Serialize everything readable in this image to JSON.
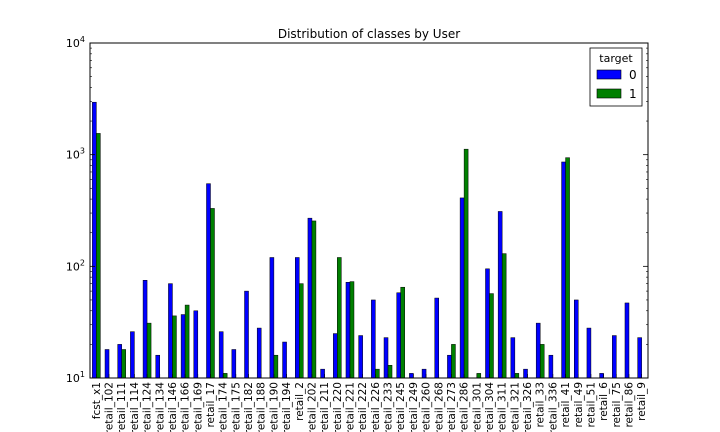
{
  "chart_data": {
    "type": "bar",
    "title": "Distribution of classes by User",
    "xlabel": "",
    "ylabel": "",
    "yscale": "log",
    "ylim": [
      10,
      10000
    ],
    "ytick_values": [
      10,
      100,
      1000,
      10000
    ],
    "categories": [
      "fcst_x1",
      "retail_102",
      "retail_111",
      "retail_114",
      "retail_124",
      "retail_134",
      "retail_146",
      "retail_166",
      "retail_169",
      "retail_17",
      "retail_174",
      "retail_175",
      "retail_182",
      "retail_188",
      "retail_190",
      "retail_194",
      "retail_2",
      "retail_202",
      "retail_211",
      "retail_220",
      "retail_221",
      "retail_222",
      "retail_226",
      "retail_233",
      "retail_245",
      "retail_249",
      "retail_260",
      "retail_268",
      "retail_273",
      "retail_286",
      "retail_301",
      "retail_304",
      "retail_311",
      "retail_321",
      "retail_326",
      "retail_33",
      "retail_336",
      "retail_41",
      "retail_49",
      "retail_51",
      "retail_6",
      "retail_75",
      "retail_86",
      "retail_9"
    ],
    "series": [
      {
        "name": "0",
        "color": "#0000ff",
        "values": [
          2950,
          18,
          20,
          26,
          75,
          16,
          70,
          37,
          40,
          550,
          26,
          18,
          60,
          28,
          120,
          21,
          120,
          270,
          12,
          25,
          72,
          24,
          50,
          23,
          58,
          11,
          12,
          52,
          16,
          410,
          10,
          95,
          310,
          23,
          12,
          31,
          16,
          860,
          50,
          28,
          11,
          24,
          47,
          23
        ]
      },
      {
        "name": "1",
        "color": "#008000",
        "values": [
          1550,
          null,
          18,
          null,
          31,
          null,
          36,
          45,
          null,
          330,
          11,
          null,
          null,
          null,
          16,
          null,
          70,
          255,
          null,
          120,
          73,
          null,
          12,
          13,
          65,
          null,
          null,
          null,
          20,
          1120,
          11,
          57,
          130,
          11,
          null,
          20,
          null,
          940,
          null,
          null,
          null,
          null,
          null,
          null
        ]
      }
    ],
    "legend": {
      "title": "target",
      "placement": "top-right"
    },
    "grid": false
  }
}
